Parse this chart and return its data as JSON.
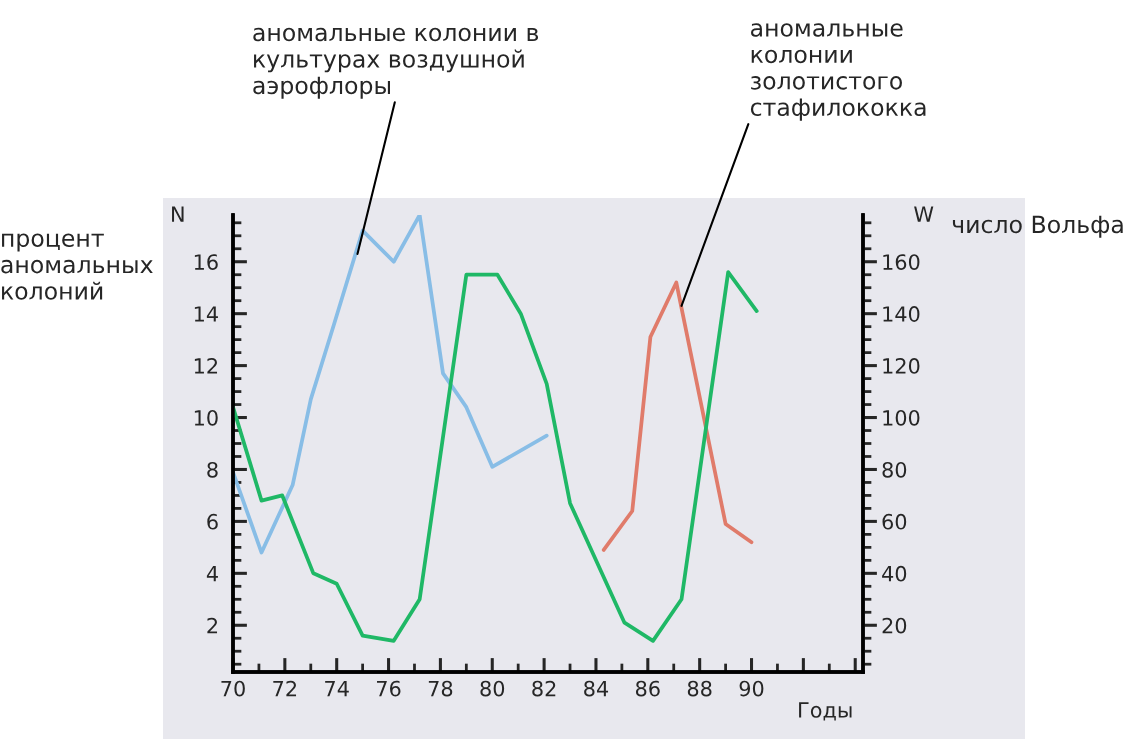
{
  "chart_data": {
    "type": "line",
    "xlabel": "Годы",
    "ylabel": "процент\nаномальных\nколоний",
    "y2label": "число Вольфа",
    "xlim": [
      70,
      94.3
    ],
    "xticks": [
      70,
      72,
      74,
      76,
      78,
      80,
      82,
      84,
      86,
      88,
      90,
      {
        "value": 92,
        "label": null
      },
      {
        "value": 94,
        "label": null
      }
    ],
    "ylim": [
      0.2,
      17.8
    ],
    "yticks": [
      2,
      4,
      6,
      8,
      10,
      12,
      14,
      16
    ],
    "y2lim": [
      2,
      178
    ],
    "y2ticks": [
      20,
      40,
      60,
      80,
      100,
      120,
      140,
      160
    ],
    "grid": false,
    "series": [
      {
        "color": "#88bde6",
        "x": [
          70.0,
          71.1,
          72.3,
          73.0,
          73.9,
          75.0,
          76.2,
          77.2,
          78.1,
          79.0,
          80.0,
          82.1
        ],
        "values": [
          7.9,
          4.8,
          7.4,
          10.7,
          13.6,
          17.2,
          16.0,
          17.8,
          11.7,
          10.4,
          8.1,
          9.3
        ]
      },
      {
        "color": "#1fb866",
        "axis": "y2",
        "x": [
          70.0,
          71.1,
          71.9,
          73.1,
          74.0,
          75.0,
          76.2,
          77.2,
          79.0,
          80.2,
          81.1,
          82.1,
          83.0,
          85.1,
          86.2,
          87.3,
          89.1,
          90.2
        ],
        "values": [
          104,
          68,
          70,
          40,
          36,
          16,
          14,
          30,
          155,
          155,
          140,
          113,
          67,
          21,
          14,
          30,
          156,
          141
        ]
      },
      {
        "color": "#e07b6a",
        "x": [
          84.3,
          85.4,
          86.1,
          87.1,
          89.0,
          90.0
        ],
        "values": [
          4.9,
          6.4,
          13.1,
          15.2,
          5.9,
          5.2
        ]
      }
    ],
    "annotations": [
      {
        "text": "аномальные колонии в\nкультурах воздушной\nаэрофлоры",
        "x": 74.8,
        "y": 16.3
      },
      {
        "text": "аномальные\nколонии\nзолотистого\nстафилококка",
        "x": 87.3,
        "y": 14.3
      },
      "N",
      "W"
    ]
  }
}
